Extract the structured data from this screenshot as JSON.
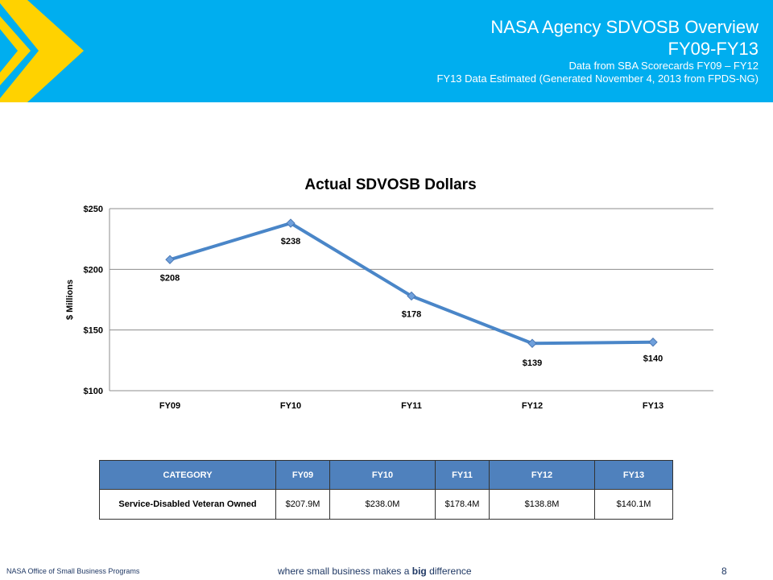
{
  "header": {
    "title_line1": "NASA Agency SDVOSB Overview",
    "title_line2": "FY09-FY13",
    "subtitle_line1": "Data from SBA Scorecards FY09 – FY12",
    "subtitle_line2": "FY13 Data Estimated (Generated November 4, 2013 from FPDS-NG)"
  },
  "chart_data": {
    "type": "line",
    "title": "Actual SDVOSB Dollars",
    "xlabel": "",
    "ylabel": "$ Millions",
    "categories": [
      "FY09",
      "FY10",
      "FY11",
      "FY12",
      "FY13"
    ],
    "series": [
      {
        "values": [
          208,
          238,
          178,
          139,
          140
        ]
      }
    ],
    "data_labels": [
      "$208",
      "$238",
      "$178",
      "$139",
      "$140"
    ],
    "ylim": [
      100,
      250
    ],
    "yticks": [
      100,
      150,
      200,
      250
    ],
    "ytick_labels": [
      "$100",
      "$150",
      "$200",
      "$250"
    ],
    "grid": true,
    "legend": "none",
    "line_color": "#4a86c8"
  },
  "table": {
    "headers": [
      "CATEGORY",
      "FY09",
      "FY10",
      "FY11",
      "FY12",
      "FY13"
    ],
    "rows": [
      [
        "Service-Disabled  Veteran Owned",
        "$207.9M",
        "$238.0M",
        "$178.4M",
        "$138.8M",
        "$140.1M"
      ]
    ]
  },
  "footer": {
    "left": "NASA Office of Small Business Programs",
    "center_pre": "where small business makes a ",
    "center_bold": "big",
    "center_post": " difference",
    "page": "8"
  },
  "colors": {
    "header_bg": "#00aeef",
    "chevron": "#ffd200",
    "table_header": "#4f81bd"
  }
}
